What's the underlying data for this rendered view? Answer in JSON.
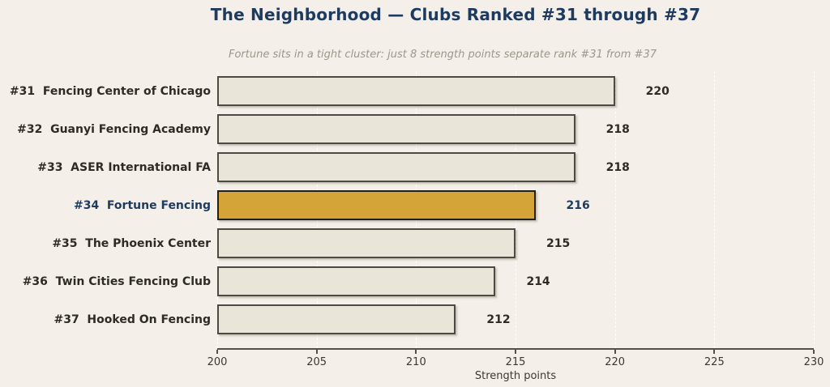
{
  "title": "The Neighborhood — Clubs Ranked #31 through #37",
  "subtitle": "Fortune sits in a tight cluster: just 8 strength points separate rank #31 from #37",
  "colors": {
    "background": "#f4efe8",
    "title_text": "#1e3a5f",
    "subtitle_text": "#9c968c",
    "bar_fill": "#e9e5d9",
    "bar_border": "#4d4a43",
    "highlight_fill": "#d4a438",
    "highlight_border": "#221f18",
    "label_text": "#2e2b27",
    "highlight_label_text": "#1e3a5f",
    "axis_line": "#55514a",
    "tick_text": "#3b3833",
    "gridline": "#ffffff"
  },
  "chart_data": {
    "type": "bar",
    "orientation": "horizontal",
    "title": "The Neighborhood — Clubs Ranked #31 through #37",
    "subtitle": "Fortune sits in a tight cluster: just 8 strength points separate rank #31 from #37",
    "xlabel": "Strength points",
    "xlim": [
      200,
      230
    ],
    "xticks": [
      200,
      205,
      210,
      215,
      220,
      225,
      230
    ],
    "grid": "vertical-dashed",
    "legend": "none",
    "bars": [
      {
        "rank": "#31",
        "label": "Fencing Center of Chicago",
        "value": 220,
        "highlight": false
      },
      {
        "rank": "#32",
        "label": "Guanyi Fencing Academy",
        "value": 218,
        "highlight": false
      },
      {
        "rank": "#33",
        "label": "ASER International FA",
        "value": 218,
        "highlight": false
      },
      {
        "rank": "#34",
        "label": "Fortune Fencing",
        "value": 216,
        "highlight": true
      },
      {
        "rank": "#35",
        "label": "The Phoenix Center",
        "value": 215,
        "highlight": false
      },
      {
        "rank": "#36",
        "label": "Twin Cities Fencing Club",
        "value": 214,
        "highlight": false
      },
      {
        "rank": "#37",
        "label": "Hooked On Fencing",
        "value": 212,
        "highlight": false
      }
    ]
  }
}
